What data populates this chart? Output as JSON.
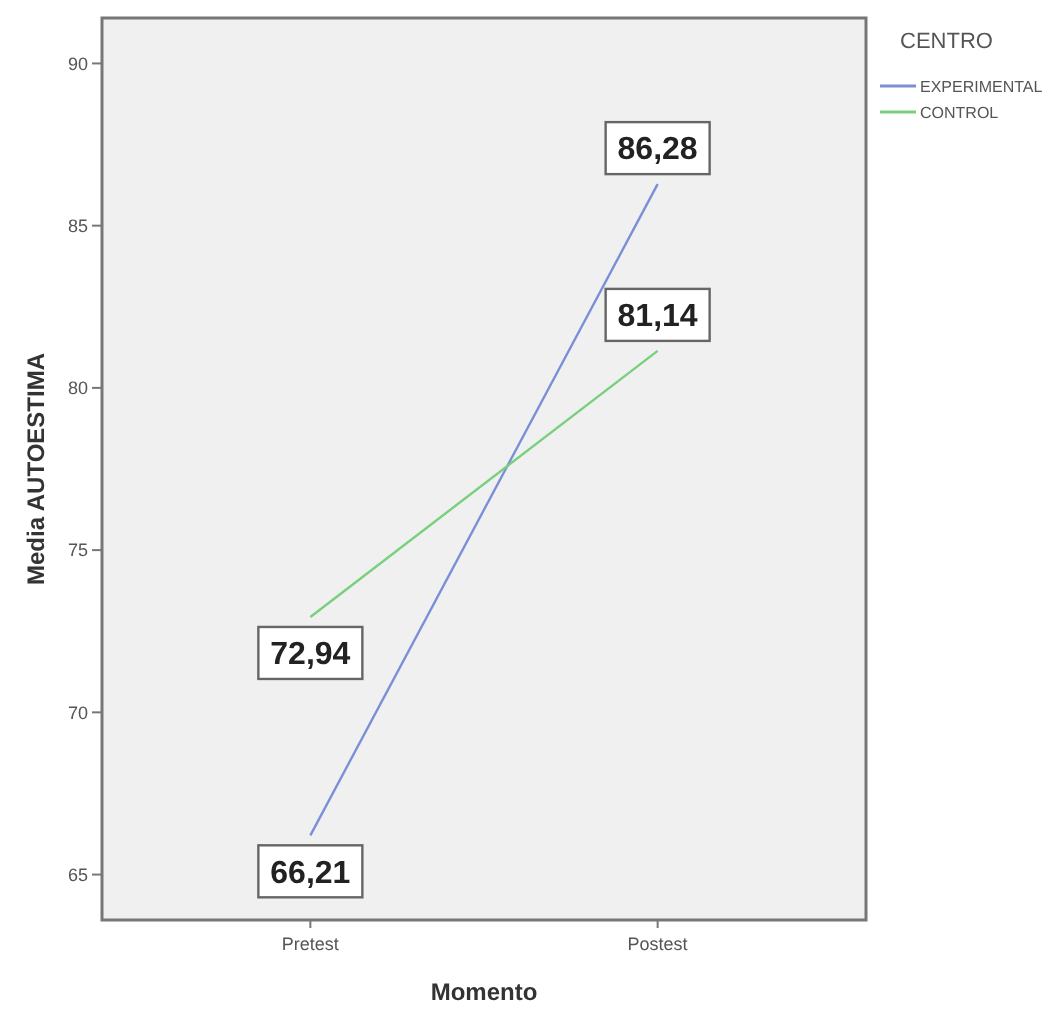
{
  "chart_data": {
    "type": "line",
    "xlabel": "Momento",
    "ylabel": "Media AUTOESTIMA",
    "legend_title": "CENTRO",
    "categories": [
      "Pretest",
      "Postest"
    ],
    "series": [
      {
        "name": "EXPERIMENTAL",
        "color": "#7b8fd6",
        "values": [
          66.21,
          86.28
        ],
        "value_labels": [
          "66,21",
          "86,28"
        ]
      },
      {
        "name": "CONTROL",
        "color": "#78d07e",
        "values": [
          72.94,
          81.14
        ],
        "value_labels": [
          "72,94",
          "81,14"
        ]
      }
    ],
    "ylim": [
      63.6,
      91.4
    ],
    "yticks": [
      65,
      70,
      75,
      80,
      85,
      90
    ],
    "legend": "top right",
    "line_style": "solid",
    "grid": false
  }
}
